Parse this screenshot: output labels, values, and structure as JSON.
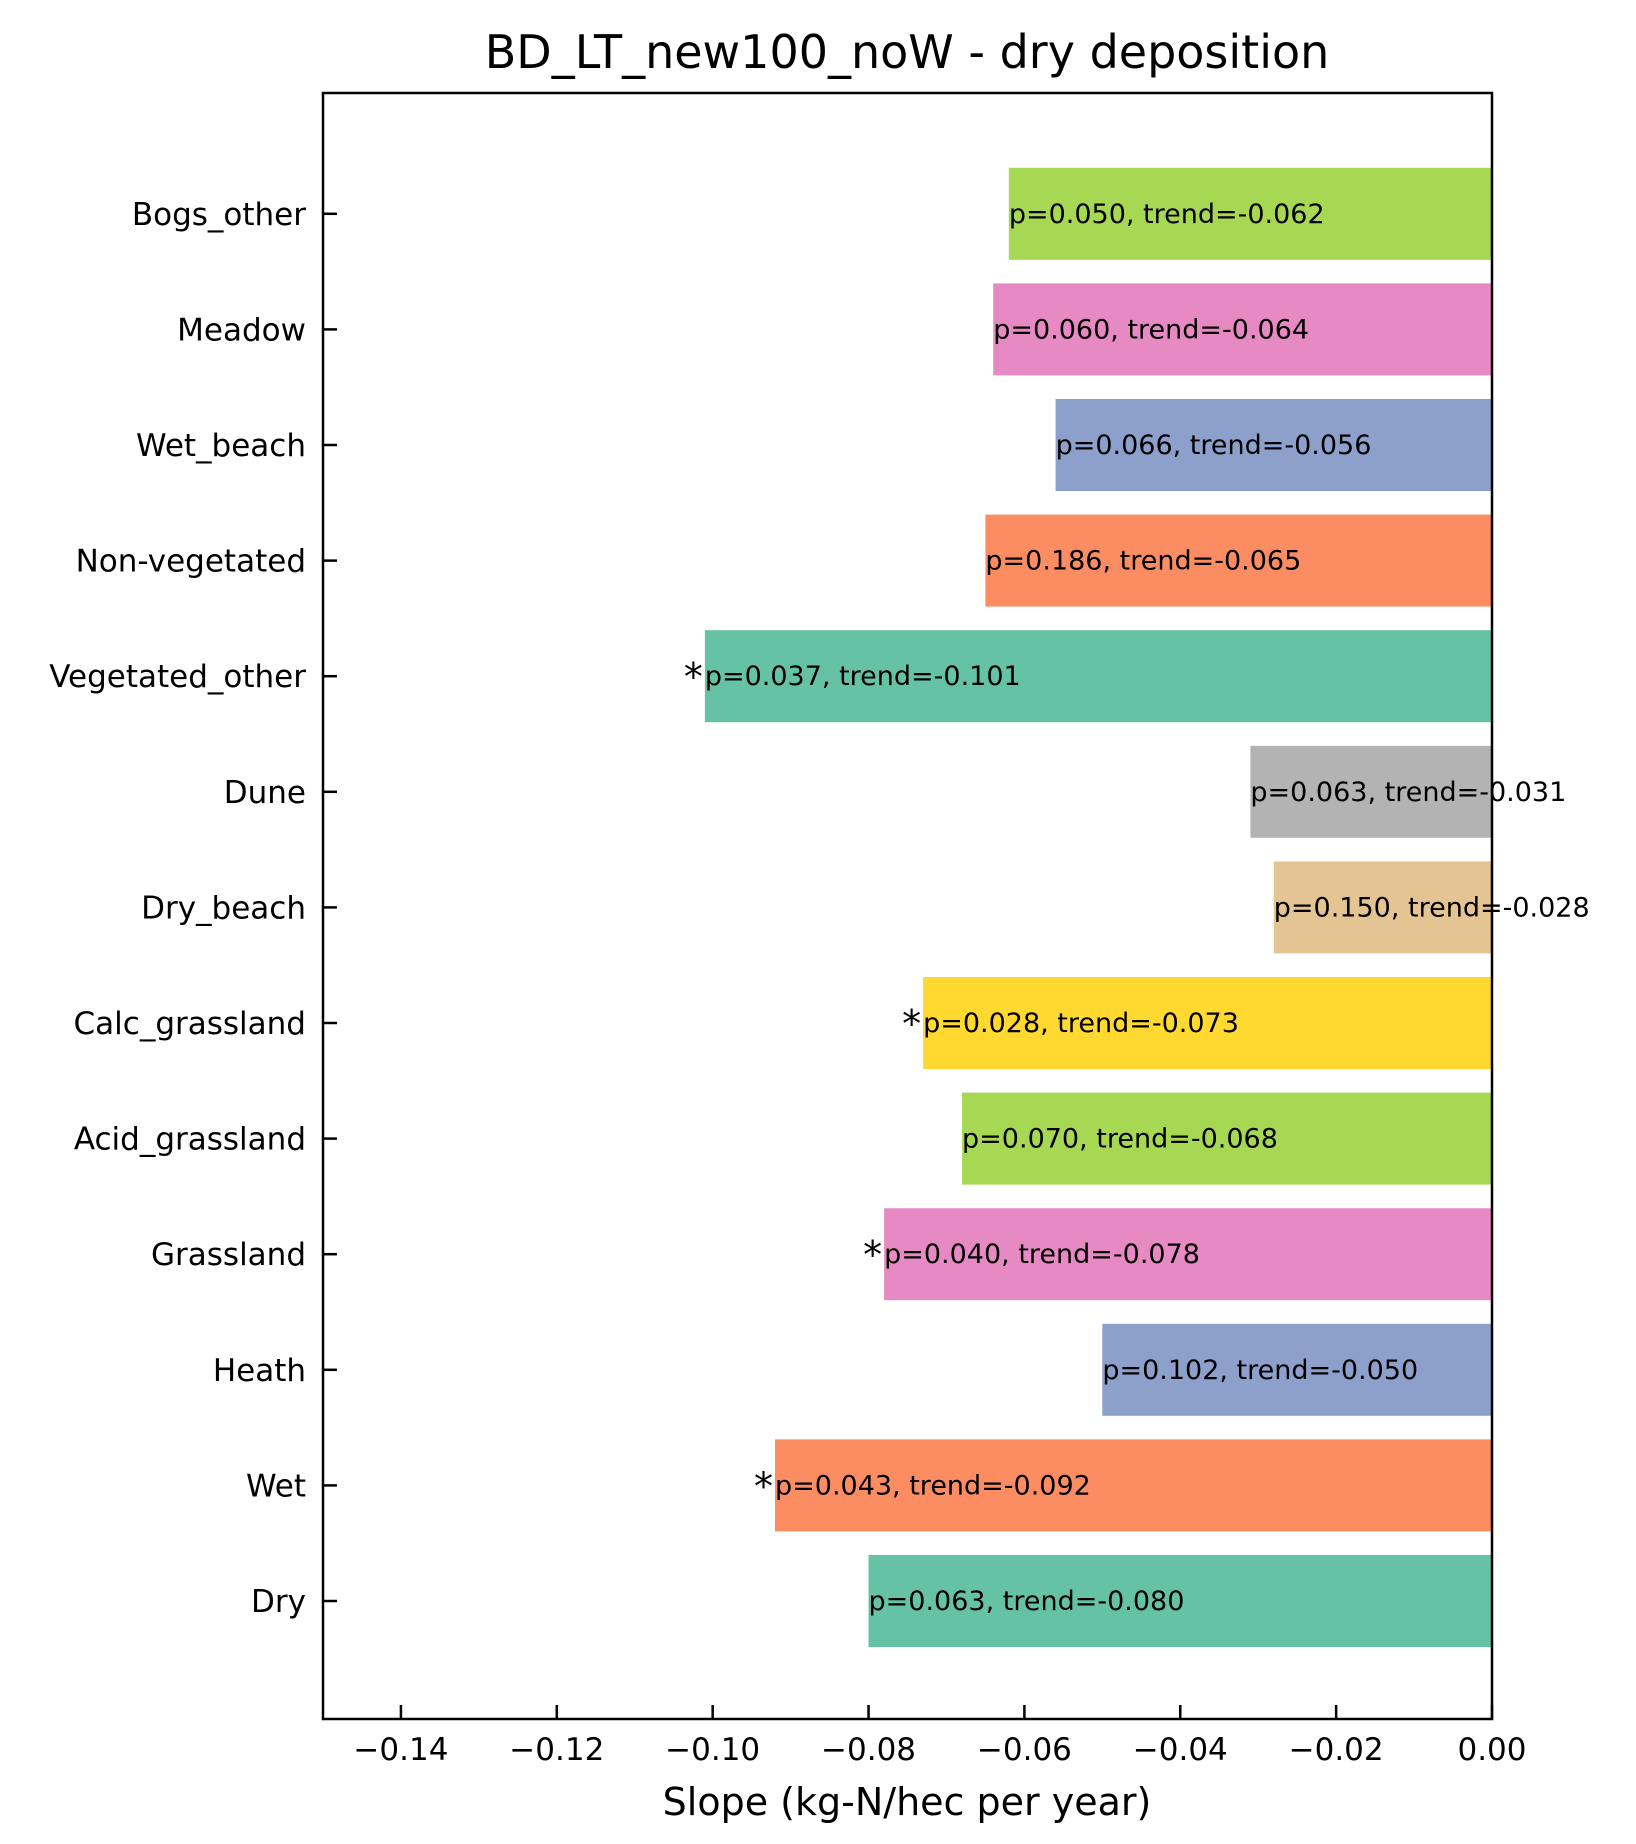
{
  "chart_data": {
    "type": "bar",
    "orientation": "horizontal",
    "title": "BD_LT_new100_noW - dry deposition",
    "xlabel": "Slope (kg-N/hec per year)",
    "ylabel": "",
    "xlim": [
      -0.15,
      0.0
    ],
    "xticks": [
      -0.14,
      -0.12,
      -0.1,
      -0.08,
      -0.06,
      -0.04,
      -0.02,
      0.0
    ],
    "xtick_labels": [
      "−0.14",
      "−0.12",
      "−0.10",
      "−0.08",
      "−0.06",
      "−0.04",
      "−0.02",
      "0.00"
    ],
    "grid": false,
    "categories": [
      "Dry",
      "Wet",
      "Heath",
      "Grassland",
      "Acid_grassland",
      "Calc_grassland",
      "Dry_beach",
      "Dune",
      "Vegetated_other",
      "Non-vegetated",
      "Wet_beach",
      "Meadow",
      "Bogs_other"
    ],
    "values": [
      -0.08,
      -0.092,
      -0.05,
      -0.078,
      -0.068,
      -0.073,
      -0.028,
      -0.031,
      -0.101,
      -0.065,
      -0.056,
      -0.064,
      -0.062
    ],
    "colors": [
      "#66c2a5",
      "#fc8d62",
      "#8da0cb",
      "#e78ac3",
      "#a6d854",
      "#ffd92f",
      "#e5c494",
      "#b3b3b3",
      "#66c2a5",
      "#fc8d62",
      "#8da0cb",
      "#e78ac3",
      "#a6d854"
    ],
    "bar_labels": [
      "p=0.063, trend=-0.080",
      "p=0.043, trend=-0.092",
      "p=0.102, trend=-0.050",
      "p=0.040, trend=-0.078",
      "p=0.070, trend=-0.068",
      "p=0.028, trend=-0.073",
      "p=0.150, trend=-0.028",
      "p=0.063, trend=-0.031",
      "p=0.037, trend=-0.101",
      "p=0.186, trend=-0.065",
      "p=0.066, trend=-0.056",
      "p=0.060, trend=-0.064",
      "p=0.050, trend=-0.062"
    ],
    "significant": [
      false,
      true,
      false,
      true,
      false,
      true,
      false,
      false,
      true,
      false,
      false,
      false,
      false
    ],
    "significance_marker": "*"
  }
}
